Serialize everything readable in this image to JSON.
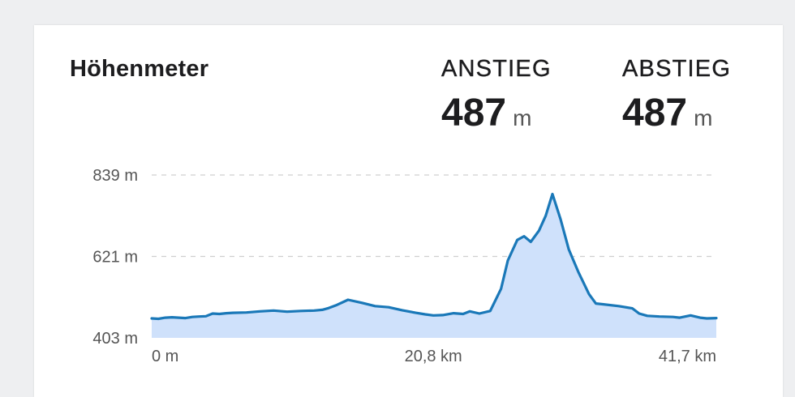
{
  "card": {
    "title": "Höhenmeter",
    "ascent": {
      "label": "ANSTIEG",
      "value": "487",
      "unit": "m"
    },
    "descent": {
      "label": "ABSTIEG",
      "value": "487",
      "unit": "m"
    }
  },
  "colors": {
    "line": "#1a78b8",
    "fill": "#cfe1fb",
    "grid": "#cfcfcf"
  },
  "chart_data": {
    "type": "area",
    "xlabel": "",
    "ylabel": "",
    "x_unit": "km",
    "y_unit": "m",
    "xlim": [
      0,
      41.7
    ],
    "ylim": [
      403,
      839
    ],
    "y_ticks": [
      {
        "value": 839,
        "label": "839 m"
      },
      {
        "value": 621,
        "label": "621 m"
      },
      {
        "value": 403,
        "label": "403 m"
      }
    ],
    "x_ticks": [
      {
        "value": 0,
        "label": "0 m"
      },
      {
        "value": 20.8,
        "label": "20,8 km"
      },
      {
        "value": 41.7,
        "label": "41,7 km"
      }
    ],
    "grid": true,
    "legend": "none",
    "series": [
      {
        "x": [
          0,
          0.5,
          1.0,
          1.5,
          2.0,
          2.5,
          3.0,
          3.5,
          4.0,
          4.5,
          5.0,
          5.5,
          6.0,
          7.0,
          8.0,
          9.0,
          10.0,
          11.0,
          12.0,
          12.6,
          13.0,
          13.6,
          14.5,
          15.5,
          16.5,
          17.5,
          18.5,
          19.5,
          20.2,
          20.8,
          21.5,
          22.3,
          23.0,
          23.5,
          24.2,
          25.0,
          25.8,
          26.3,
          27.0,
          27.5,
          28.0,
          28.6,
          29.1,
          29.6,
          30.2,
          30.8,
          31.5,
          32.3,
          32.8,
          33.3,
          34.5,
          35.5,
          36.0,
          36.6,
          37.5,
          38.5,
          39.0,
          39.8,
          40.5,
          41.0,
          41.7
        ],
        "y": [
          455,
          454,
          457,
          458,
          457,
          456,
          459,
          460,
          461,
          468,
          467,
          469,
          470,
          471,
          474,
          476,
          473,
          475,
          476,
          478,
          482,
          490,
          505,
          497,
          488,
          485,
          477,
          470,
          466,
          463,
          464,
          469,
          467,
          474,
          468,
          475,
          534,
          610,
          665,
          675,
          660,
          690,
          730,
          788,
          720,
          640,
          580,
          520,
          495,
          493,
          488,
          482,
          468,
          462,
          460,
          459,
          457,
          463,
          457,
          455,
          456
        ]
      }
    ]
  }
}
